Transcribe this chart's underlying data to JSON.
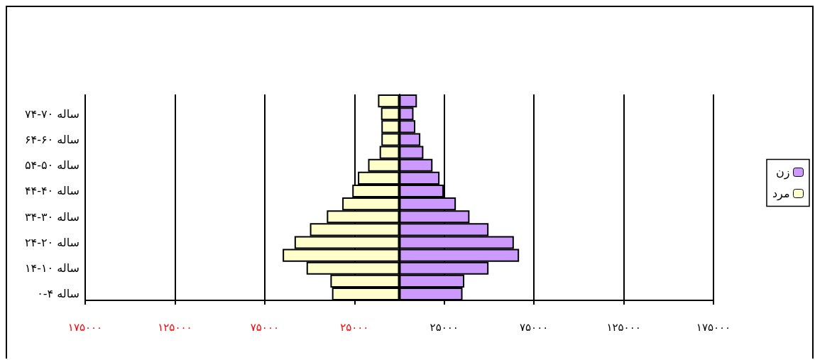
{
  "chart_data": {
    "type": "bar",
    "orientation": "horizontal",
    "categories": [
      null,
      "ساله ۷۰-۷۴",
      null,
      "ساله ۶۰-۶۴",
      null,
      "ساله ۵۰-۵۴",
      null,
      "ساله ۴۰-۴۴",
      null,
      "ساله ۳۰-۳۴",
      null,
      "ساله ۲۰-۲۴",
      null,
      "ساله ۱۰-۱۴",
      null,
      "ساله ۴-۰"
    ],
    "series": [
      {
        "name": "زن",
        "color": "#cc99ff",
        "values": [
          9800,
          7900,
          8900,
          11700,
          13400,
          18500,
          22400,
          24700,
          31500,
          39100,
          49700,
          63800,
          66700,
          49700,
          36200,
          35200
        ]
      },
      {
        "name": "مرد",
        "color": "#ffffcc",
        "values": [
          -11900,
          -10200,
          -10000,
          -10000,
          -11000,
          -17400,
          -23100,
          -26200,
          -31800,
          -40400,
          -49800,
          -58400,
          -65000,
          -51700,
          -38400,
          -37500
        ]
      }
    ],
    "xlim": [
      -175000,
      175000
    ],
    "xticks": [
      {
        "value": -175000,
        "label": "۱۷۵۰۰۰"
      },
      {
        "value": -125000,
        "label": "۱۲۵۰۰۰"
      },
      {
        "value": -75000,
        "label": "۷۵۰۰۰"
      },
      {
        "value": -25000,
        "label": "۲۵۰۰۰"
      },
      {
        "value": 25000,
        "label": "۲۵۰۰۰"
      },
      {
        "value": 75000,
        "label": "۷۵۰۰۰"
      },
      {
        "value": 125000,
        "label": "۱۲۵۰۰۰"
      },
      {
        "value": 175000,
        "label": "۱۷۵۰۰۰"
      }
    ],
    "grid": "x",
    "legend": "right",
    "stacked": true
  }
}
